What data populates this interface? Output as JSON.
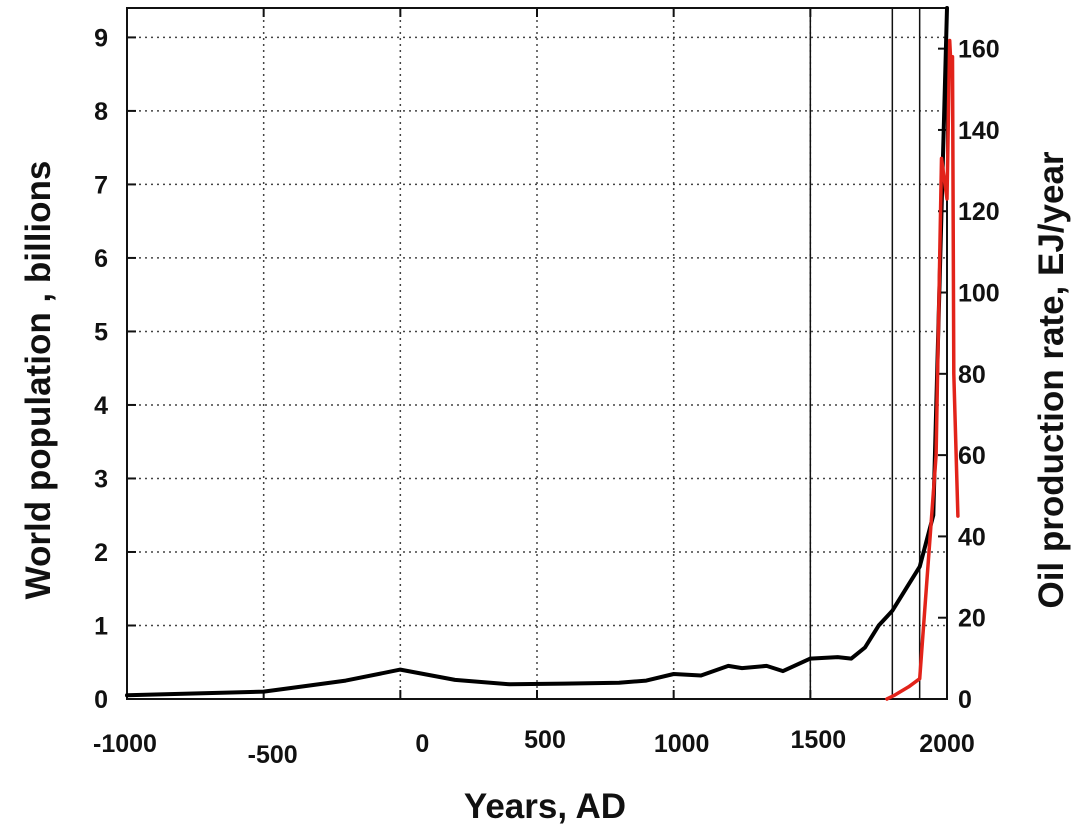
{
  "chart_data": {
    "type": "line",
    "title": "",
    "xlabel": "Years, AD",
    "ylabel": "World population , billions",
    "y2label": "Oil production rate, EJ/year",
    "xlim": [
      -1000,
      2000
    ],
    "ylim": [
      0,
      9.4
    ],
    "y2lim": [
      0,
      170
    ],
    "x_ticks": [
      -1000,
      -500,
      0,
      500,
      1000,
      1500,
      2000
    ],
    "x_tick_labels": [
      "-1000",
      "-500",
      "0",
      "500",
      "1000",
      "1500",
      "2000"
    ],
    "y_ticks": [
      0,
      1,
      2,
      3,
      4,
      5,
      6,
      7,
      8,
      9
    ],
    "y2_ticks": [
      0,
      20,
      40,
      60,
      80,
      100,
      120,
      140,
      160
    ],
    "grid": true,
    "vertical_lines": [
      1500,
      1800,
      1900
    ],
    "series": [
      {
        "axis": "left",
        "color": "#000000",
        "x": [
          -1000,
          -500,
          -400,
          -200,
          0,
          200,
          400,
          600,
          800,
          900,
          1000,
          1100,
          1200,
          1250,
          1340,
          1400,
          1500,
          1600,
          1650,
          1700,
          1750,
          1800,
          1850,
          1900,
          1950,
          2000
        ],
        "values": [
          0.05,
          0.1,
          0.15,
          0.25,
          0.4,
          0.26,
          0.2,
          0.21,
          0.22,
          0.25,
          0.34,
          0.32,
          0.45,
          0.42,
          0.45,
          0.38,
          0.55,
          0.57,
          0.55,
          0.7,
          1.0,
          1.2,
          1.5,
          1.8,
          2.5,
          9.4
        ]
      },
      {
        "axis": "right",
        "color": "#e2231a",
        "x": [
          1780,
          1810,
          1860,
          1900,
          1960,
          1980,
          2000,
          2010,
          2015,
          2020,
          2025,
          2040
        ],
        "values": [
          0,
          1,
          3,
          5,
          60,
          133,
          123,
          162,
          155,
          158,
          80,
          45
        ]
      }
    ]
  }
}
